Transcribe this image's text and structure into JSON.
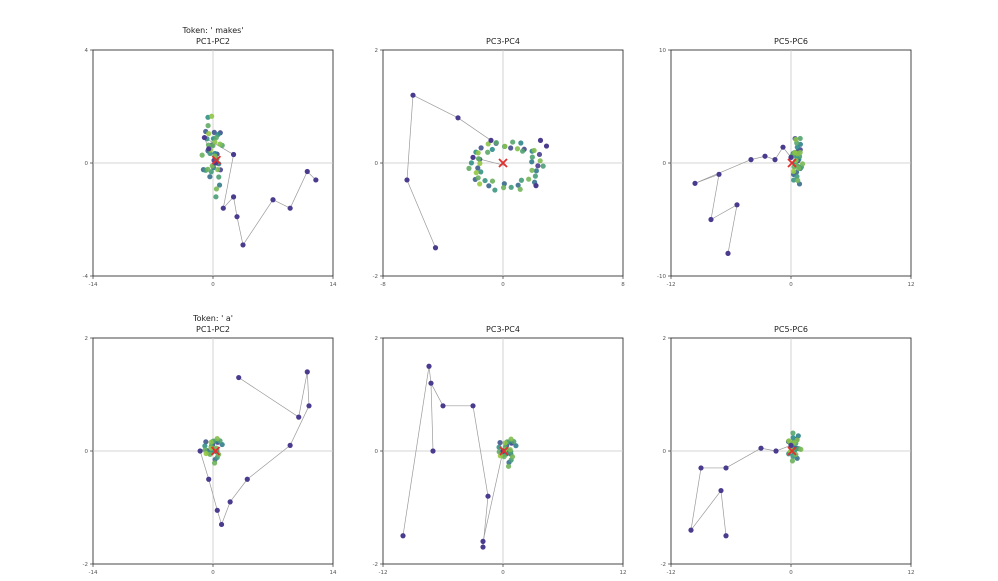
{
  "colors": {
    "early": "#4b3b8f",
    "late": "#9ccc3c",
    "final": "#e03030",
    "frame": "#333333"
  },
  "chart_data": [
    {
      "type": "scatter",
      "title_top": "Token: ' makes'",
      "title": "PC1-PC2",
      "xlim": [
        -14,
        14
      ],
      "ylim": [
        -4,
        4
      ],
      "xticks": [
        "-14",
        "0",
        "14"
      ],
      "yticks": [
        "-4",
        "0",
        "4"
      ],
      "grid": false,
      "trajectory": [
        [
          12,
          -0.6
        ],
        [
          11,
          -0.3
        ],
        [
          9,
          -1.6
        ],
        [
          7,
          -1.3
        ],
        [
          3.5,
          -2.9
        ],
        [
          2.8,
          -1.9
        ],
        [
          2.4,
          -1.2
        ],
        [
          1.2,
          -1.6
        ],
        [
          2.4,
          0.3
        ],
        [
          -1,
          0.9
        ],
        [
          -0.5,
          0.5
        ],
        [
          0.3,
          0
        ]
      ],
      "cluster": {
        "center": [
          0,
          0.3
        ],
        "rx": 1.6,
        "ry": 1.3,
        "angle": -60,
        "count": 40
      },
      "final": [
        0.4,
        0.1
      ]
    },
    {
      "type": "scatter",
      "title": "PC3-PC4",
      "xlim": [
        -8,
        8
      ],
      "ylim": [
        -2,
        2
      ],
      "xticks": [
        "-8",
        "0",
        "8"
      ],
      "yticks": [
        "-2",
        "0",
        "2"
      ],
      "grid": false,
      "trajectory": [
        [
          -6,
          1.2
        ],
        [
          -3,
          0.8
        ],
        [
          -0.8,
          0.4
        ],
        [
          -6.4,
          -0.3
        ],
        [
          -4.5,
          -1.5
        ],
        [
          2.5,
          0.4
        ],
        [
          2.9,
          0.3
        ],
        [
          2.2,
          -0.4
        ],
        [
          -2,
          0.1
        ]
      ],
      "trajectory_order": [
        [
          0,
          1
        ],
        [
          1,
          2
        ],
        [
          0,
          3
        ],
        [
          3,
          4
        ]
      ],
      "cluster": {
        "center": [
          0.2,
          -0.05
        ],
        "rx": 2.5,
        "ry": 0.45,
        "angle": 0,
        "ring": true,
        "count": 50
      },
      "final": [
        0,
        0
      ]
    },
    {
      "type": "scatter",
      "title": "PC5-PC6",
      "xlim": [
        -12,
        12
      ],
      "ylim": [
        -10,
        10
      ],
      "xticks": [
        "-12",
        "0",
        "12"
      ],
      "yticks": [
        "-10",
        "0",
        "10"
      ],
      "grid": false,
      "trajectory": [
        [
          -6.3,
          -8
        ],
        [
          -5.4,
          -3.7
        ],
        [
          -8,
          -5
        ],
        [
          -7.2,
          -1
        ],
        [
          -9.6,
          -1.8
        ],
        [
          -4,
          0.3
        ],
        [
          -2.6,
          0.6
        ],
        [
          -1.6,
          0.3
        ],
        [
          -0.8,
          1.4
        ],
        [
          0,
          0.5
        ]
      ],
      "cluster": {
        "center": [
          0.6,
          0.2
        ],
        "rx": 0.6,
        "ry": 2.4,
        "angle": 0,
        "count": 36
      },
      "final": [
        0.1,
        0
      ]
    },
    {
      "type": "scatter",
      "title_top": "Token: ' a'",
      "title": "PC1-PC2",
      "xlim": [
        -14,
        14
      ],
      "ylim": [
        -2,
        2
      ],
      "xticks": [
        "-14",
        "0",
        "14"
      ],
      "yticks": [
        "-2",
        "0",
        "2"
      ],
      "grid": false,
      "trajectory": [
        [
          3,
          1.3
        ],
        [
          10,
          0.6
        ],
        [
          11,
          1.4
        ],
        [
          11.2,
          0.8
        ],
        [
          9,
          0.1
        ],
        [
          4,
          -0.5
        ],
        [
          2,
          -0.9
        ],
        [
          1,
          -1.3
        ],
        [
          0.5,
          -1.05
        ],
        [
          -0.5,
          -0.5
        ],
        [
          -1.5,
          0
        ]
      ],
      "cluster": {
        "center": [
          0,
          0.03
        ],
        "rx": 1.2,
        "ry": 0.25,
        "angle": 0,
        "count": 28
      },
      "final": [
        0.3,
        0
      ]
    },
    {
      "type": "scatter",
      "title": "PC3-PC4",
      "xlim": [
        -12,
        12
      ],
      "ylim": [
        -2,
        2
      ],
      "xticks": [
        "-12",
        "0",
        "12"
      ],
      "yticks": [
        "-2",
        "0",
        "2"
      ],
      "grid": false,
      "trajectory": [
        [
          -7,
          0
        ],
        [
          -7.2,
          1.2
        ],
        [
          -7.4,
          1.5
        ],
        [
          -10,
          -1.5
        ],
        [
          -6,
          0.8
        ],
        [
          -3,
          0.8
        ],
        [
          -1.5,
          -0.8
        ],
        [
          -2,
          -1.7
        ],
        [
          -2,
          -1.6
        ],
        [
          0,
          0
        ]
      ],
      "trajectory_order": [
        [
          0,
          1
        ],
        [
          1,
          2
        ],
        [
          2,
          3
        ],
        [
          1,
          4
        ],
        [
          4,
          5
        ],
        [
          5,
          6
        ],
        [
          6,
          7
        ],
        [
          7,
          8
        ],
        [
          8,
          9
        ]
      ],
      "cluster": {
        "center": [
          0.4,
          0
        ],
        "rx": 1,
        "ry": 0.28,
        "angle": 0,
        "count": 28
      },
      "final": [
        0.1,
        0
      ]
    },
    {
      "type": "scatter",
      "title": "PC5-PC6",
      "xlim": [
        -12,
        12
      ],
      "ylim": [
        -2,
        2
      ],
      "xticks": [
        "-12",
        "0",
        "12"
      ],
      "yticks": [
        "-2",
        "0",
        "2"
      ],
      "grid": false,
      "trajectory": [
        [
          -6.5,
          -1.5
        ],
        [
          -7,
          -0.7
        ],
        [
          -10,
          -1.4
        ],
        [
          -9,
          -0.3
        ],
        [
          -6.5,
          -0.3
        ],
        [
          -3,
          0.05
        ],
        [
          -1.5,
          0
        ],
        [
          0,
          0.1
        ]
      ],
      "cluster": {
        "center": [
          0.3,
          0.05
        ],
        "rx": 0.7,
        "ry": 0.3,
        "angle": 0,
        "count": 26
      },
      "final": [
        0.1,
        0
      ]
    }
  ]
}
